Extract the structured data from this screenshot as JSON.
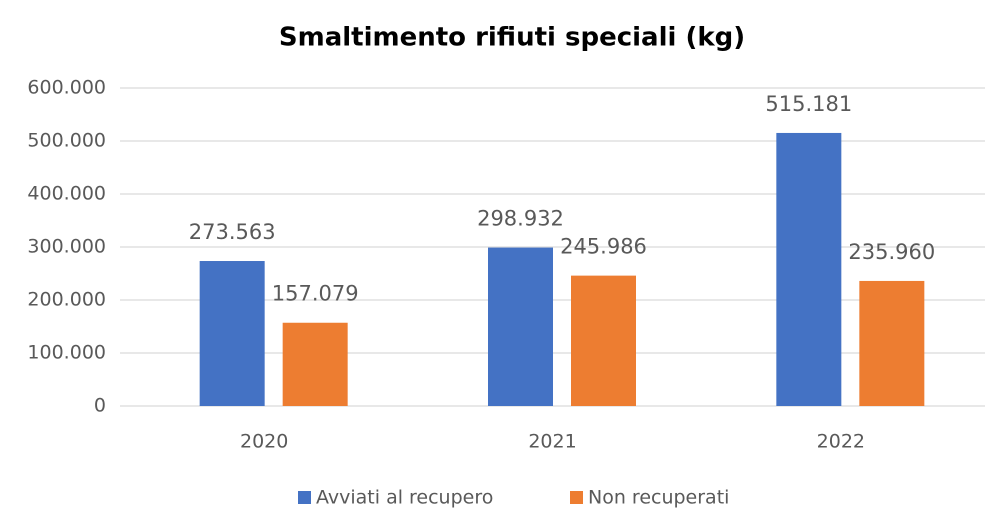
{
  "chart_data": {
    "type": "bar",
    "title": "Smaltimento rifiuti speciali (kg)",
    "categories": [
      "2020",
      "2021",
      "2022"
    ],
    "series": [
      {
        "name": "Avviati al recupero",
        "color": "#4472c4",
        "values": [
          273563,
          298932,
          515181
        ],
        "value_labels": [
          "273.563",
          "298.932",
          "515.181"
        ]
      },
      {
        "name": "Non recuperati",
        "color": "#ed7d31",
        "values": [
          157079,
          245986,
          235960
        ],
        "value_labels": [
          "157.079",
          "245.986",
          "235.960"
        ]
      }
    ],
    "ylim": [
      0,
      600000
    ],
    "yticks": [
      0,
      {
        "value": 100000,
        "label": "100.000"
      },
      {
        "value": 200000,
        "label": "200.000"
      },
      {
        "value": 300000,
        "label": "300.000"
      },
      {
        "value": 400000,
        "label": "400.000"
      },
      {
        "value": 500000,
        "label": "500.000"
      },
      {
        "value": 600000,
        "label": "600.000"
      }
    ],
    "grid": true,
    "legend": "bottom"
  }
}
